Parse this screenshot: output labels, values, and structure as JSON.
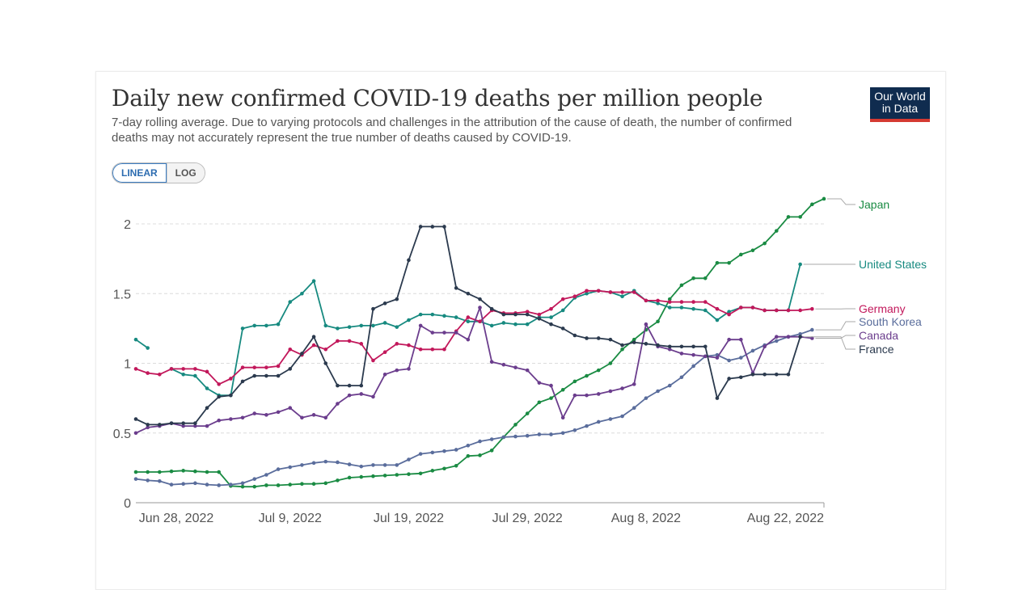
{
  "title": "Daily new confirmed COVID-19 deaths per million people",
  "subtitle": "7-day rolling average. Due to varying protocols and challenges in the attribution of the cause of death, the number of confirmed deaths may not accurately represent the true number of deaths caused by COVID-19.",
  "logo": {
    "line1": "Our World",
    "line2": "in Data"
  },
  "scale_toggle": {
    "linear": "LINEAR",
    "log": "LOG",
    "selected": "LINEAR"
  },
  "chart_data": {
    "type": "line",
    "title": "Daily new confirmed COVID-19 deaths per million people",
    "ylim": [
      0,
      2.2
    ],
    "y_ticks": [
      0,
      0.5,
      1,
      1.5,
      2
    ],
    "y_tick_labels": [
      "0",
      "0.5",
      "1",
      "1.5",
      "2"
    ],
    "grid": "horizontal dashed",
    "x": [
      "2022-06-26",
      "2022-06-27",
      "2022-06-28",
      "2022-06-29",
      "2022-06-30",
      "2022-07-01",
      "2022-07-02",
      "2022-07-03",
      "2022-07-04",
      "2022-07-05",
      "2022-07-06",
      "2022-07-07",
      "2022-07-08",
      "2022-07-09",
      "2022-07-10",
      "2022-07-11",
      "2022-07-12",
      "2022-07-13",
      "2022-07-14",
      "2022-07-15",
      "2022-07-16",
      "2022-07-17",
      "2022-07-18",
      "2022-07-19",
      "2022-07-20",
      "2022-07-21",
      "2022-07-22",
      "2022-07-23",
      "2022-07-24",
      "2022-07-25",
      "2022-07-26",
      "2022-07-27",
      "2022-07-28",
      "2022-07-29",
      "2022-07-30",
      "2022-07-31",
      "2022-08-01",
      "2022-08-02",
      "2022-08-03",
      "2022-08-04",
      "2022-08-05",
      "2022-08-06",
      "2022-08-07",
      "2022-08-08",
      "2022-08-09",
      "2022-08-10",
      "2022-08-11",
      "2022-08-12",
      "2022-08-13",
      "2022-08-14",
      "2022-08-15",
      "2022-08-16",
      "2022-08-17",
      "2022-08-18",
      "2022-08-19",
      "2022-08-20",
      "2022-08-21",
      "2022-08-22",
      "2022-08-23"
    ],
    "x_tick_labels": [
      {
        "date": "2022-06-28",
        "label": "Jun 28, 2022"
      },
      {
        "date": "2022-07-09",
        "label": "Jul 9, 2022"
      },
      {
        "date": "2022-07-19",
        "label": "Jul 19, 2022"
      },
      {
        "date": "2022-07-29",
        "label": "Jul 29, 2022"
      },
      {
        "date": "2022-08-08",
        "label": "Aug 8, 2022"
      },
      {
        "date": "2022-08-22",
        "label": "Aug 22, 2022"
      }
    ],
    "legend_placement": "right (end-of-line labels)",
    "series": [
      {
        "name": "Japan",
        "color": "#1a8b43",
        "values": [
          0.22,
          0.22,
          0.22,
          0.225,
          0.23,
          0.225,
          0.22,
          0.22,
          0.12,
          0.115,
          0.115,
          0.125,
          0.125,
          0.13,
          0.135,
          0.135,
          0.14,
          0.16,
          0.18,
          0.185,
          0.19,
          0.195,
          0.2,
          0.205,
          0.21,
          0.23,
          0.245,
          0.265,
          0.335,
          0.34,
          0.375,
          0.47,
          0.56,
          0.64,
          0.72,
          0.75,
          0.81,
          0.87,
          0.91,
          0.95,
          1.0,
          1.1,
          1.17,
          1.24,
          1.3,
          1.46,
          1.56,
          1.61,
          1.61,
          1.72,
          1.72,
          1.78,
          1.81,
          1.86,
          1.95,
          2.05,
          2.05,
          2.14,
          2.18
        ]
      },
      {
        "name": "United States",
        "color": "#178a80",
        "values": [
          1.17,
          1.11,
          null,
          0.96,
          0.92,
          0.91,
          0.82,
          0.77,
          0.77,
          1.25,
          1.27,
          1.27,
          1.28,
          1.44,
          1.5,
          1.59,
          1.27,
          1.25,
          1.26,
          1.27,
          1.27,
          1.29,
          1.26,
          1.31,
          1.35,
          1.35,
          1.34,
          1.33,
          1.3,
          1.3,
          1.27,
          1.29,
          1.28,
          1.28,
          1.33,
          1.33,
          1.38,
          1.47,
          1.5,
          1.52,
          1.51,
          1.48,
          1.52,
          1.45,
          1.43,
          1.4,
          1.4,
          1.39,
          1.38,
          1.31,
          1.37,
          1.4,
          1.4,
          1.38,
          1.38,
          1.38,
          1.71,
          null,
          null
        ]
      },
      {
        "name": "Germany",
        "color": "#c2185b",
        "values": [
          0.96,
          0.93,
          0.92,
          0.96,
          0.96,
          0.96,
          0.94,
          0.85,
          0.89,
          0.97,
          0.97,
          0.97,
          0.98,
          1.1,
          1.06,
          1.13,
          1.1,
          1.16,
          1.16,
          1.14,
          1.02,
          1.08,
          1.14,
          1.13,
          1.1,
          1.1,
          1.1,
          1.23,
          1.33,
          1.3,
          1.38,
          1.36,
          1.36,
          1.37,
          1.35,
          1.39,
          1.46,
          1.48,
          1.52,
          1.52,
          1.51,
          1.51,
          1.51,
          1.45,
          1.45,
          1.44,
          1.44,
          1.44,
          1.44,
          1.39,
          1.35,
          1.4,
          1.4,
          1.38,
          1.38,
          1.38,
          1.38,
          1.39,
          null
        ]
      },
      {
        "name": "South Korea",
        "color": "#5a6d9c",
        "values": [
          0.17,
          0.16,
          0.155,
          0.13,
          0.135,
          0.14,
          0.13,
          0.125,
          0.13,
          0.14,
          0.17,
          0.2,
          0.24,
          0.255,
          0.27,
          0.285,
          0.295,
          0.29,
          0.275,
          0.26,
          0.27,
          0.27,
          0.27,
          0.31,
          0.35,
          0.36,
          0.37,
          0.38,
          0.41,
          0.44,
          0.455,
          0.47,
          0.475,
          0.48,
          0.49,
          0.49,
          0.5,
          0.52,
          0.55,
          0.58,
          0.6,
          0.62,
          0.68,
          0.75,
          0.8,
          0.84,
          0.9,
          0.98,
          1.05,
          1.06,
          1.02,
          1.04,
          1.09,
          1.13,
          1.16,
          1.19,
          1.21,
          1.24,
          null
        ]
      },
      {
        "name": "Canada",
        "color": "#6b3d8d",
        "values": [
          0.5,
          0.54,
          0.55,
          0.57,
          0.55,
          0.55,
          0.55,
          0.59,
          0.6,
          0.61,
          0.64,
          0.63,
          0.65,
          0.68,
          0.61,
          0.63,
          0.61,
          0.71,
          0.77,
          0.78,
          0.76,
          0.92,
          0.95,
          0.96,
          1.27,
          1.22,
          1.22,
          1.22,
          1.17,
          1.4,
          1.01,
          0.99,
          0.97,
          0.95,
          0.86,
          0.84,
          0.61,
          0.77,
          0.77,
          0.78,
          0.8,
          0.82,
          0.85,
          1.28,
          1.12,
          1.1,
          1.07,
          1.06,
          1.05,
          1.04,
          1.17,
          1.17,
          0.93,
          1.12,
          1.19,
          1.19,
          1.19,
          1.18,
          null
        ]
      },
      {
        "name": "France",
        "color": "#2b3a4e",
        "values": [
          0.6,
          0.56,
          0.56,
          0.57,
          0.57,
          0.57,
          0.68,
          0.76,
          0.77,
          0.87,
          0.91,
          0.91,
          0.91,
          0.96,
          1.07,
          1.19,
          1.0,
          0.84,
          0.84,
          0.84,
          1.39,
          1.43,
          1.46,
          1.74,
          1.98,
          1.98,
          1.98,
          1.54,
          1.5,
          1.46,
          1.39,
          1.35,
          1.35,
          1.35,
          1.32,
          1.28,
          1.25,
          1.2,
          1.18,
          1.18,
          1.17,
          1.13,
          1.15,
          1.14,
          1.13,
          1.12,
          1.12,
          1.12,
          1.12,
          0.75,
          0.89,
          0.9,
          0.92,
          0.92,
          0.92,
          0.92,
          1.19,
          null,
          null
        ]
      }
    ]
  }
}
